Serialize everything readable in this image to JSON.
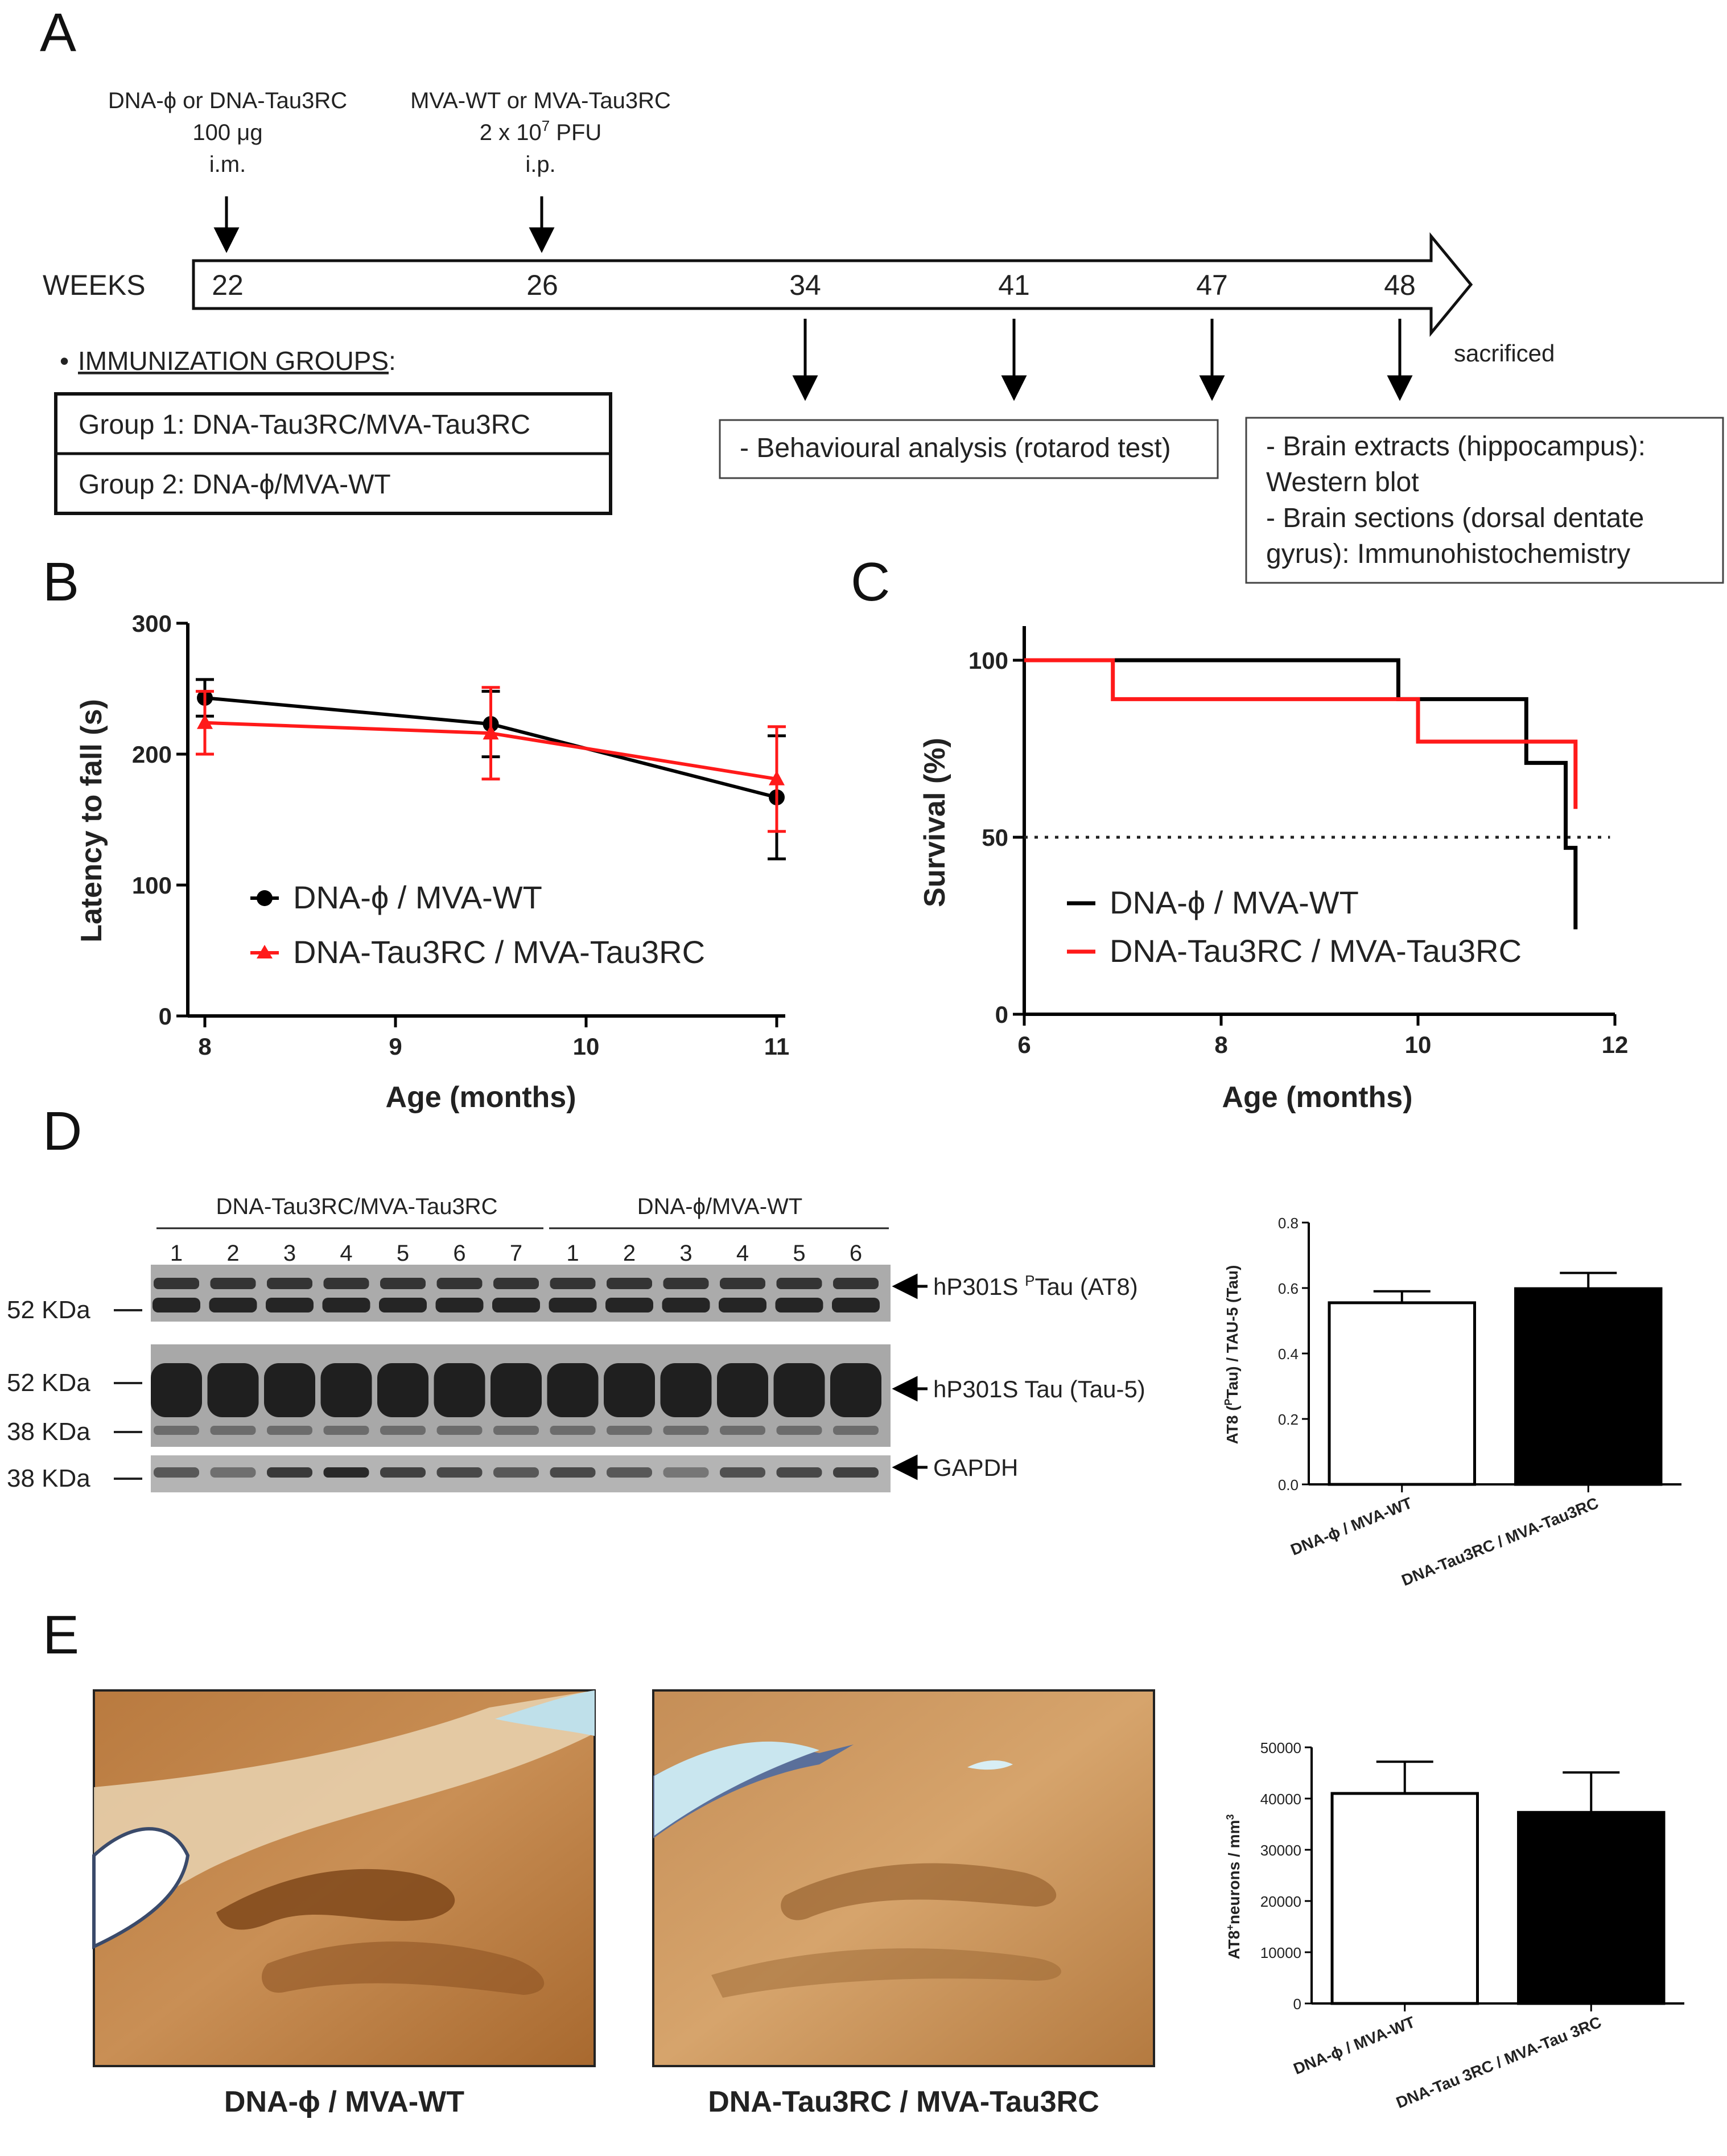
{
  "panels": {
    "A": "A",
    "B": "B",
    "C": "C",
    "D": "D",
    "E": "E"
  },
  "panelA": {
    "prime_line1": "DNA-ϕ or DNA-Tau3RC",
    "prime_line2": "100 μg",
    "prime_line3": "i.m.",
    "boost_line1": "MVA-WT or MVA-Tau3RC",
    "boost_line2_pre": "2 x 10",
    "boost_line2_sup": "7",
    "boost_line2_post": " PFU",
    "boost_line3": "i.p.",
    "weeks_label": "WEEKS",
    "weeks": [
      "22",
      "26",
      "34",
      "41",
      "47",
      "48"
    ],
    "sacrificed": "sacrificed",
    "groups_title": "IMMUNIZATION GROUPS",
    "groups_colon": ":",
    "bullet": "•",
    "group1": "Group 1: DNA-Tau3RC/MVA-Tau3RC",
    "group2": "Group 2: DNA-ϕ/MVA-WT",
    "behaviour": "- Behavioural analysis (rotarod test)",
    "brain1": "- Brain extracts (hippocampus):",
    "brain2": "Western blot",
    "brain3": "- Brain sections (dorsal dentate",
    "brain4": "gyrus): Immunohistochemistry"
  },
  "legend": {
    "ctrl": "DNA-ϕ / MVA-WT",
    "vacc": "DNA-Tau3RC / MVA-Tau3RC"
  },
  "colors": {
    "ctrl": "#000000",
    "vacc": "#ff1a1a"
  },
  "chart_data": [
    {
      "id": "B",
      "type": "line",
      "title": "",
      "xlabel": "Age (months)",
      "ylabel": "Latency to fall (s)",
      "xlim": [
        8,
        11
      ],
      "ylim": [
        0,
        300
      ],
      "xticks": [
        8,
        9,
        10,
        11
      ],
      "yticks": [
        0,
        100,
        200,
        300
      ],
      "x": [
        8,
        9.5,
        11
      ],
      "series": [
        {
          "name": "DNA-ϕ / MVA-WT",
          "values": [
            243,
            223,
            167
          ],
          "err": [
            14,
            25,
            47
          ],
          "marker": "circle"
        },
        {
          "name": "DNA-Tau3RC / MVA-Tau3RC",
          "values": [
            224,
            216,
            181
          ],
          "err": [
            24,
            35,
            40
          ],
          "marker": "triangle"
        }
      ]
    },
    {
      "id": "C",
      "type": "line",
      "title": "",
      "xlabel": "Age (months)",
      "ylabel": "Survival (%)",
      "xlim": [
        6,
        12
      ],
      "ylim": [
        0,
        100
      ],
      "xticks": [
        6,
        8,
        10,
        12
      ],
      "yticks": [
        0,
        50,
        100
      ],
      "reference_line": 50,
      "series": [
        {
          "name": "DNA-ϕ / MVA-WT",
          "steps": [
            [
              6,
              100
            ],
            [
              9.8,
              100
            ],
            [
              9.8,
              89
            ],
            [
              11.1,
              89
            ],
            [
              11.1,
              71
            ],
            [
              11.5,
              71
            ],
            [
              11.5,
              47
            ],
            [
              11.6,
              47
            ],
            [
              11.6,
              24
            ]
          ]
        },
        {
          "name": "DNA-Tau3RC / MVA-Tau3RC",
          "steps": [
            [
              6,
              100
            ],
            [
              6.9,
              100
            ],
            [
              6.9,
              89
            ],
            [
              10,
              89
            ],
            [
              10,
              77
            ],
            [
              11.6,
              77
            ],
            [
              11.6,
              58
            ]
          ]
        }
      ]
    },
    {
      "id": "D",
      "type": "bar",
      "title": "",
      "categories": [
        "DNA-ϕ / MVA-WT",
        "DNA-Tau3RC / MVA-Tau3RC"
      ],
      "values": [
        0.555,
        0.598
      ],
      "err": [
        0.035,
        0.048
      ],
      "fills": [
        "#ffffff",
        "#000000"
      ],
      "xlabel": "",
      "ylabel_pre": "AT8 (",
      "ylabel_sup": "P",
      "ylabel_post": "Tau) / TAU-5 (Tau)",
      "ylim": [
        0,
        0.8
      ],
      "yticks": [
        "0.0",
        "0.2",
        "0.4",
        "0.6",
        "0.8"
      ]
    },
    {
      "id": "E",
      "type": "bar",
      "title": "",
      "categories": [
        "DNA-ϕ / MVA-WT",
        "DNA-Tau 3RC / MVA-Tau 3RC"
      ],
      "values": [
        41000,
        37300
      ],
      "err": [
        6200,
        7800
      ],
      "fills": [
        "#ffffff",
        "#000000"
      ],
      "xlabel": "",
      "ylabel_pre": "AT8",
      "ylabel_sup": "+",
      "ylabel_post": "neurons / mm",
      "ylabel_sup2": "3",
      "ylim": [
        0,
        50000
      ],
      "yticks": [
        "0",
        "10000",
        "20000",
        "30000",
        "40000",
        "50000"
      ]
    }
  ],
  "blot": {
    "group_vacc": "DNA-Tau3RC/MVA-Tau3RC",
    "group_ctrl": "DNA-ϕ/MVA-WT",
    "lanes_vacc": [
      "1",
      "2",
      "3",
      "4",
      "5",
      "6",
      "7"
    ],
    "lanes_ctrl": [
      "1",
      "2",
      "3",
      "4",
      "5",
      "6"
    ],
    "mw_52a": "52 KDa",
    "mw_52b": "52 KDa",
    "mw_38a": "38 KDa",
    "mw_38b": "38 KDa",
    "band_at8_pre": "hP301S ",
    "band_at8_sup": "P",
    "band_at8_post": "Tau (AT8)",
    "band_tau5": "hP301S Tau (Tau-5)",
    "band_gapdh": "GAPDH"
  },
  "panelE": {
    "caption_ctrl": "DNA-ϕ / MVA-WT",
    "caption_vacc": "DNA-Tau3RC / MVA-Tau3RC"
  }
}
